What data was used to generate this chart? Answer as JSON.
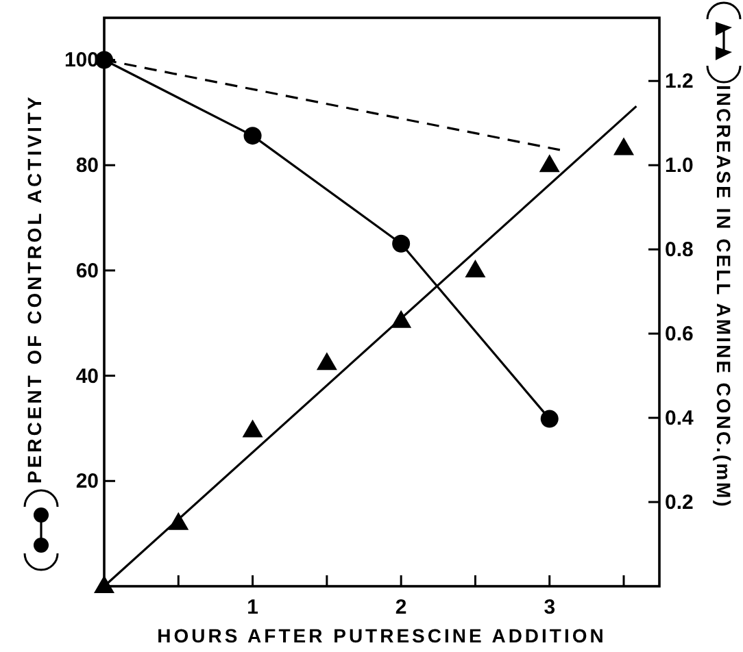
{
  "chart_data": {
    "type": "line",
    "xlabel": "HOURS AFTER PUTRESCINE ADDITION",
    "ylabel": "PERCENT OF CONTROL ACTIVITY",
    "y2label": "INCREASE IN CELL AMINE CONC.(mM)",
    "xlim": [
      0,
      3.74
    ],
    "xticks": [
      {
        "value": 0.5,
        "label": null
      },
      1,
      {
        "value": 1.5,
        "label": null
      },
      2,
      {
        "value": 2.5,
        "label": null
      },
      3,
      {
        "value": 3.5,
        "label": null
      }
    ],
    "ylim": [
      0,
      108
    ],
    "yticks": [
      20,
      40,
      60,
      80,
      100
    ],
    "y2lim": [
      0,
      1.35
    ],
    "y2ticks": [
      {
        "value": 0.2,
        "label": "0.2"
      },
      {
        "value": 0.4,
        "label": "0.4"
      },
      {
        "value": 0.6,
        "label": "0.6"
      },
      {
        "value": 0.8,
        "label": "0.8"
      },
      {
        "value": 1.0,
        "label": "1.0"
      },
      {
        "value": 1.2,
        "label": "1.2"
      }
    ],
    "series": [
      {
        "color": "#000000",
        "marker": "circle",
        "line_style": "solid",
        "x": [
          0,
          1,
          2,
          3
        ],
        "values": [
          100,
          85.6,
          65.1,
          31.8
        ]
      },
      {
        "color": "#000000",
        "marker": "none",
        "line_style": "dashed",
        "x": [
          0,
          3.07
        ],
        "values": [
          100,
          82.9
        ]
      },
      {
        "type": "scatter",
        "axis": "y2",
        "color": "#000000",
        "marker": "triangle",
        "x": [
          0,
          0.5,
          1,
          1.5,
          2,
          2.5,
          3,
          3.5
        ],
        "values": [
          0,
          0.15,
          0.37,
          0.53,
          0.63,
          0.75,
          1.0,
          1.04
        ]
      },
      {
        "type": "line",
        "axis": "y2",
        "color": "#000000",
        "marker": "none",
        "line_style": "solid",
        "x": [
          0,
          3.585
        ],
        "values": [
          0,
          1.14
        ]
      }
    ]
  }
}
